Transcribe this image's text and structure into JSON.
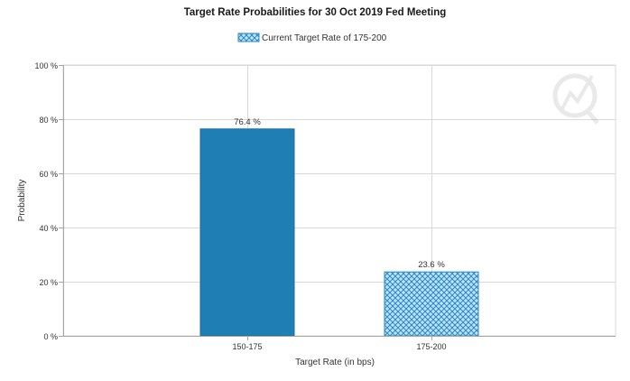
{
  "chart_data": {
    "type": "bar",
    "title": "Target Rate Probabilities for 30 Oct 2019 Fed Meeting",
    "xlabel": "Target Rate (in bps)",
    "ylabel": "Probability",
    "categories": [
      "150-175",
      "175-200"
    ],
    "values": [
      76.4,
      23.6
    ],
    "data_labels": [
      "76.4 %",
      "23.6 %"
    ],
    "ylim": [
      0,
      100
    ],
    "yticks": [
      0,
      20,
      40,
      60,
      80,
      100
    ],
    "ytick_labels": [
      "0 %",
      "20 %",
      "40 %",
      "60 %",
      "80 %",
      "100 %"
    ],
    "grid": true,
    "legend": {
      "position": "top-center",
      "entries": [
        {
          "label": "Current Target Rate of 175-200",
          "category": "175-200",
          "pattern": "crosshatch"
        }
      ]
    },
    "colors": {
      "bar": "#1f7fb5",
      "bar_border": "#1a6d9c",
      "hatch_bg": "#bfe3f5",
      "hatch_line": "#2a8ac4",
      "grid": "#d9d9d9",
      "axis": "#a6a6a6",
      "text": "#333333",
      "title": "#1a1a1a"
    }
  }
}
